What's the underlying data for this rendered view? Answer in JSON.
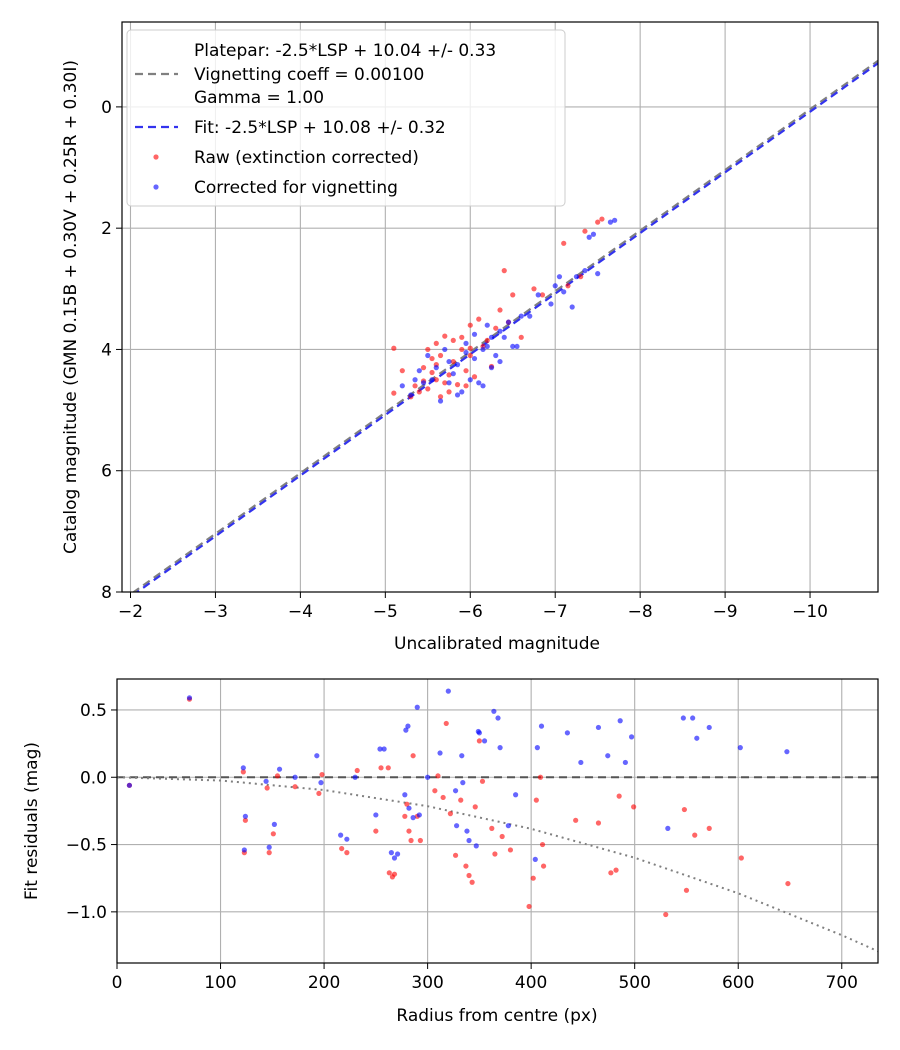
{
  "colors": {
    "raw": "#ff0000",
    "corrected": "#0000ff",
    "platepar_line": "#808080",
    "fit_line": "#3333ee",
    "zero_line": "#555555",
    "model_line": "#808080",
    "grid": "#b0b0b0"
  },
  "chart_data": [
    {
      "type": "scatter",
      "title": "",
      "xlabel": "Uncalibrated magnitude",
      "ylabel": "Catalog magnitude (GMN 0.15B + 0.30V + 0.25R + 0.30I)",
      "xlim": [
        -1.9,
        -10.8
      ],
      "ylim": [
        8,
        -1.4
      ],
      "xticks": [
        -2,
        -3,
        -4,
        -5,
        -6,
        -7,
        -8,
        -9,
        -10
      ],
      "xtick_labels": [
        "−2",
        "−3",
        "−4",
        "−5",
        "−6",
        "−7",
        "−8",
        "−9",
        "−10"
      ],
      "yticks": [
        0,
        2,
        4,
        6,
        8
      ],
      "ytick_labels": [
        "0",
        "2",
        "4",
        "6",
        "8"
      ],
      "grid": true,
      "legend_position": "top-left",
      "legend": {
        "platepar": [
          "Platepar: -2.5*LSP + 10.04 +/- 0.33",
          "Vignetting coeff = 0.00100",
          "Gamma = 1.00"
        ],
        "fit": "Fit: -2.5*LSP + 10.08 +/- 0.32",
        "raw": "Raw (extinction corrected)",
        "corrected": "Corrected for vignetting"
      },
      "lines": [
        {
          "name": "Platepar",
          "slope": 1,
          "intercept": 10.04,
          "style": "dashed"
        },
        {
          "name": "Fit",
          "slope": 1,
          "intercept": 10.08,
          "style": "dashed"
        }
      ],
      "series": [
        {
          "name": "Raw (extinction corrected)",
          "points": [
            [
              -5.1,
              3.98
            ],
            [
              -5.2,
              4.35
            ],
            [
              -5.1,
              4.72
            ],
            [
              -5.3,
              4.78
            ],
            [
              -5.35,
              4.6
            ],
            [
              -5.4,
              4.7
            ],
            [
              -5.45,
              4.3
            ],
            [
              -5.5,
              4.0
            ],
            [
              -5.5,
              4.65
            ],
            [
              -5.55,
              4.15
            ],
            [
              -5.6,
              3.9
            ],
            [
              -5.6,
              4.5
            ],
            [
              -5.65,
              4.78
            ],
            [
              -5.7,
              4.55
            ],
            [
              -5.7,
              3.78
            ],
            [
              -5.75,
              4.42
            ],
            [
              -5.8,
              3.85
            ],
            [
              -5.8,
              4.2
            ],
            [
              -5.85,
              4.58
            ],
            [
              -5.9,
              4.0
            ],
            [
              -5.9,
              3.8
            ],
            [
              -5.95,
              4.35
            ],
            [
              -6.0,
              3.6
            ],
            [
              -6.0,
              3.98
            ],
            [
              -6.05,
              4.45
            ],
            [
              -6.1,
              3.5
            ],
            [
              -6.15,
              3.95
            ],
            [
              -6.2,
              3.85
            ],
            [
              -6.3,
              3.65
            ],
            [
              -6.35,
              3.35
            ],
            [
              -6.4,
              2.7
            ],
            [
              -6.5,
              3.1
            ],
            [
              -6.6,
              3.8
            ],
            [
              -6.75,
              3.0
            ],
            [
              -6.85,
              3.1
            ],
            [
              -7.1,
              2.25
            ],
            [
              -7.15,
              2.95
            ],
            [
              -7.3,
              2.8
            ],
            [
              -7.5,
              1.9
            ],
            [
              -7.55,
              1.85
            ],
            [
              -7.35,
              2.05
            ],
            [
              -5.95,
              4.6
            ],
            [
              -5.55,
              4.38
            ],
            [
              -5.65,
              4.1
            ],
            [
              -6.25,
              4.28
            ],
            [
              -5.45,
              4.52
            ],
            [
              -6.45,
              3.55
            ],
            [
              -5.75,
              4.7
            ],
            [
              -5.6,
              4.25
            ],
            [
              -6.0,
              4.1
            ]
          ]
        },
        {
          "name": "Corrected for vignetting",
          "points": [
            [
              -5.2,
              4.6
            ],
            [
              -5.3,
              4.75
            ],
            [
              -5.4,
              4.35
            ],
            [
              -5.5,
              4.1
            ],
            [
              -5.55,
              4.5
            ],
            [
              -5.6,
              4.3
            ],
            [
              -5.7,
              4.0
            ],
            [
              -5.75,
              4.55
            ],
            [
              -5.8,
              4.4
            ],
            [
              -5.85,
              4.25
            ],
            [
              -5.9,
              4.7
            ],
            [
              -5.95,
              4.05
            ],
            [
              -6.0,
              4.5
            ],
            [
              -6.05,
              4.15
            ],
            [
              -6.1,
              4.55
            ],
            [
              -6.15,
              4.0
            ],
            [
              -6.2,
              3.95
            ],
            [
              -6.25,
              3.8
            ],
            [
              -6.3,
              4.1
            ],
            [
              -6.35,
              3.7
            ],
            [
              -6.4,
              3.8
            ],
            [
              -6.45,
              3.55
            ],
            [
              -6.5,
              3.95
            ],
            [
              -6.55,
              3.95
            ],
            [
              -6.6,
              3.45
            ],
            [
              -6.7,
              3.45
            ],
            [
              -6.8,
              3.1
            ],
            [
              -6.95,
              3.25
            ],
            [
              -7.0,
              2.95
            ],
            [
              -7.1,
              3.05
            ],
            [
              -7.2,
              3.3
            ],
            [
              -7.25,
              2.8
            ],
            [
              -7.35,
              2.7
            ],
            [
              -7.5,
              2.75
            ],
            [
              -7.4,
              2.15
            ],
            [
              -7.45,
              2.1
            ],
            [
              -7.65,
              1.9
            ],
            [
              -7.7,
              1.87
            ],
            [
              -5.65,
              4.85
            ],
            [
              -5.85,
              4.75
            ],
            [
              -6.15,
              4.6
            ],
            [
              -5.45,
              4.55
            ],
            [
              -5.95,
              3.9
            ],
            [
              -6.35,
              4.2
            ],
            [
              -6.05,
              3.75
            ],
            [
              -5.35,
              4.5
            ],
            [
              -6.2,
              3.6
            ],
            [
              -7.05,
              2.8
            ],
            [
              -5.75,
              4.2
            ],
            [
              -6.25,
              4.3
            ]
          ]
        }
      ]
    },
    {
      "type": "scatter",
      "title": "",
      "xlabel": "Radius from centre (px)",
      "ylabel": "Fit residuals (mag)",
      "xlim": [
        0,
        735
      ],
      "ylim": [
        -1.38,
        0.73
      ],
      "xticks": [
        0,
        100,
        200,
        300,
        400,
        500,
        600,
        700
      ],
      "xtick_labels": [
        "0",
        "100",
        "200",
        "300",
        "400",
        "500",
        "600",
        "700"
      ],
      "yticks": [
        0.5,
        0.0,
        -0.5,
        -1.0
      ],
      "ytick_labels": [
        "0.5",
        "0.0",
        "−0.5",
        "−1.0"
      ],
      "grid": true,
      "lines": [
        {
          "name": "Zero",
          "style": "dashed",
          "points": [
            [
              0,
              0
            ],
            [
              735,
              0
            ]
          ]
        },
        {
          "name": "Vignetting model",
          "style": "dotted",
          "points": [
            [
              0,
              0
            ],
            [
              100,
              -0.024
            ],
            [
              200,
              -0.095
            ],
            [
              300,
              -0.215
            ],
            [
              400,
              -0.383
            ],
            [
              500,
              -0.598
            ],
            [
              600,
              -0.862
            ],
            [
              700,
              -1.173
            ],
            [
              735,
              -1.293
            ]
          ]
        }
      ],
      "series": [
        {
          "name": "Raw (extinction corrected)",
          "points": [
            [
              12,
              -0.06
            ],
            [
              70,
              0.58
            ],
            [
              122,
              0.04
            ],
            [
              123,
              -0.56
            ],
            [
              124,
              -0.32
            ],
            [
              145,
              -0.08
            ],
            [
              147,
              -0.56
            ],
            [
              151,
              -0.42
            ],
            [
              155,
              0.01
            ],
            [
              172,
              -0.07
            ],
            [
              195,
              -0.12
            ],
            [
              198,
              0.02
            ],
            [
              217,
              -0.53
            ],
            [
              222,
              -0.56
            ],
            [
              232,
              0.05
            ],
            [
              250,
              -0.4
            ],
            [
              255,
              0.07
            ],
            [
              262,
              0.07
            ],
            [
              263,
              -0.71
            ],
            [
              266,
              -0.74
            ],
            [
              268,
              -0.72
            ],
            [
              278,
              -0.29
            ],
            [
              280,
              -0.2
            ],
            [
              282,
              -0.4
            ],
            [
              284,
              -0.47
            ],
            [
              286,
              0.16
            ],
            [
              290,
              -0.29
            ],
            [
              293,
              -0.47
            ],
            [
              307,
              -0.1
            ],
            [
              310,
              0.01
            ],
            [
              315,
              -0.15
            ],
            [
              318,
              0.4
            ],
            [
              322,
              -0.27
            ],
            [
              327,
              -0.58
            ],
            [
              332,
              -0.17
            ],
            [
              337,
              -0.66
            ],
            [
              340,
              -0.73
            ],
            [
              343,
              -0.78
            ],
            [
              346,
              -0.22
            ],
            [
              350,
              0.27
            ],
            [
              353,
              -0.03
            ],
            [
              362,
              -0.38
            ],
            [
              365,
              -0.57
            ],
            [
              372,
              -0.44
            ],
            [
              380,
              -0.54
            ],
            [
              398,
              -0.96
            ],
            [
              402,
              -0.75
            ],
            [
              405,
              -0.17
            ],
            [
              409,
              0.0
            ],
            [
              411,
              -0.5
            ],
            [
              412,
              -0.66
            ],
            [
              443,
              -0.32
            ],
            [
              465,
              -0.34
            ],
            [
              477,
              -0.71
            ],
            [
              482,
              -0.69
            ],
            [
              485,
              -0.14
            ],
            [
              499,
              -0.22
            ],
            [
              530,
              -1.02
            ],
            [
              548,
              -0.24
            ],
            [
              550,
              -0.84
            ],
            [
              558,
              -0.43
            ],
            [
              572,
              -0.38
            ],
            [
              603,
              -0.6
            ],
            [
              648,
              -0.79
            ]
          ]
        },
        {
          "name": "Corrected for vignetting",
          "points": [
            [
              12,
              -0.06
            ],
            [
              70,
              0.59
            ],
            [
              122,
              0.07
            ],
            [
              123,
              -0.54
            ],
            [
              124,
              -0.29
            ],
            [
              144,
              -0.03
            ],
            [
              147,
              -0.52
            ],
            [
              152,
              -0.35
            ],
            [
              157,
              0.06
            ],
            [
              172,
              0.0
            ],
            [
              193,
              0.16
            ],
            [
              197,
              -0.04
            ],
            [
              216,
              -0.43
            ],
            [
              222,
              -0.46
            ],
            [
              230,
              0.0
            ],
            [
              250,
              -0.28
            ],
            [
              254,
              0.21
            ],
            [
              258,
              0.21
            ],
            [
              265,
              -0.56
            ],
            [
              268,
              -0.6
            ],
            [
              271,
              -0.57
            ],
            [
              278,
              -0.13
            ],
            [
              279,
              0.35
            ],
            [
              281,
              0.38
            ],
            [
              282,
              -0.23
            ],
            [
              286,
              -0.3
            ],
            [
              290,
              0.52
            ],
            [
              292,
              -0.28
            ],
            [
              300,
              0.0
            ],
            [
              312,
              0.18
            ],
            [
              320,
              0.64
            ],
            [
              327,
              -0.1
            ],
            [
              328,
              -0.36
            ],
            [
              333,
              0.16
            ],
            [
              334,
              -0.04
            ],
            [
              338,
              -0.4
            ],
            [
              340,
              -0.47
            ],
            [
              347,
              -0.51
            ],
            [
              349,
              0.34
            ],
            [
              350,
              0.33
            ],
            [
              355,
              0.27
            ],
            [
              364,
              0.49
            ],
            [
              368,
              0.44
            ],
            [
              370,
              0.22
            ],
            [
              378,
              -0.36
            ],
            [
              385,
              -0.13
            ],
            [
              404,
              -0.61
            ],
            [
              406,
              0.22
            ],
            [
              410,
              0.38
            ],
            [
              435,
              0.33
            ],
            [
              448,
              0.11
            ],
            [
              465,
              0.37
            ],
            [
              474,
              0.16
            ],
            [
              486,
              0.42
            ],
            [
              491,
              0.11
            ],
            [
              497,
              0.3
            ],
            [
              532,
              -0.38
            ],
            [
              547,
              0.44
            ],
            [
              556,
              0.44
            ],
            [
              560,
              0.29
            ],
            [
              572,
              0.37
            ],
            [
              602,
              0.22
            ],
            [
              647,
              0.19
            ]
          ]
        }
      ]
    }
  ]
}
